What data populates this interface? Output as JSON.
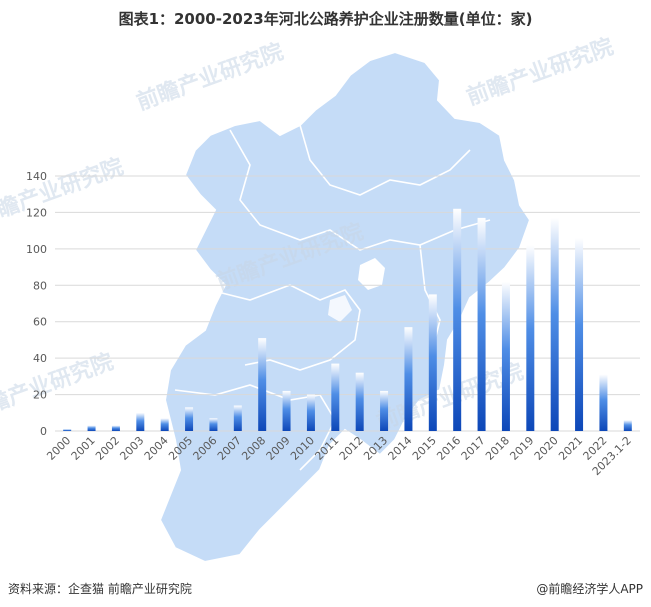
{
  "watermark": "前瞻产业研究院",
  "footer": {
    "source": "资料来源：企查猫 前瞻产业研究院",
    "brand": "@前瞻经济学人APP"
  },
  "colors": {
    "bar_base": "#1f5fbf",
    "bar_top": "#ffffff",
    "map_fill": "#c5dcf7",
    "map_border": "#ffffff",
    "grid": "#d9d9d9"
  },
  "chart_data": {
    "type": "bar",
    "title": "图表1：2000-2023年河北公路养护企业注册数量(单位：家)",
    "categories": [
      "2000",
      "2001",
      "2002",
      "2003",
      "2004",
      "2005",
      "2006",
      "2007",
      "2008",
      "2009",
      "2010",
      "2011",
      "2012",
      "2013",
      "2014",
      "2015",
      "2016",
      "2017",
      "2018",
      "2019",
      "2020",
      "2021",
      "2022",
      "2023.1-2"
    ],
    "values": [
      1,
      3,
      3,
      10,
      7,
      13,
      7,
      14,
      51,
      22,
      20,
      37,
      32,
      22,
      57,
      75,
      122,
      117,
      82,
      102,
      117,
      106,
      31,
      6
    ],
    "ylim": [
      0,
      140
    ],
    "yticks": [
      0,
      20,
      40,
      60,
      80,
      100,
      120,
      140
    ],
    "grid": true,
    "legend": "none"
  }
}
